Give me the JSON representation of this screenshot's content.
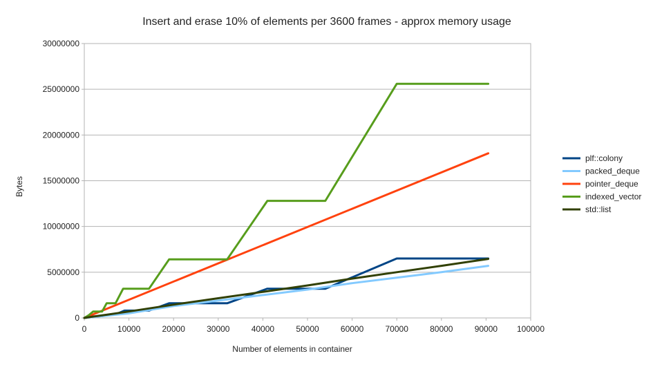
{
  "chart_data": {
    "type": "line",
    "title": "Insert and erase 10% of elements per 3600 frames - approx memory usage",
    "xlabel": "Number of elements in container",
    "ylabel": "Bytes",
    "xlim": [
      0,
      100000
    ],
    "ylim": [
      0,
      30000000
    ],
    "x_ticks": [
      "0",
      "10000",
      "20000",
      "30000",
      "40000",
      "50000",
      "60000",
      "70000",
      "80000",
      "90000",
      "100000"
    ],
    "y_ticks": [
      "0",
      "5000000",
      "10000000",
      "15000000",
      "20000000",
      "25000000",
      "30000000"
    ],
    "grid": true,
    "legend_position": "right",
    "series": [
      {
        "name": "plf::colony",
        "color": "#004586",
        "points": [
          [
            0,
            0
          ],
          [
            1000,
            50000
          ],
          [
            2000,
            100000
          ],
          [
            3000,
            200000
          ],
          [
            4000,
            200000
          ],
          [
            5000,
            300000
          ],
          [
            6000,
            400000
          ],
          [
            7000,
            400000
          ],
          [
            8000,
            600000
          ],
          [
            9000,
            800000
          ],
          [
            12000,
            800000
          ],
          [
            14500,
            800000
          ],
          [
            19000,
            1600000
          ],
          [
            26000,
            1600000
          ],
          [
            32000,
            1600000
          ],
          [
            41000,
            3200000
          ],
          [
            47000,
            3200000
          ],
          [
            54000,
            3200000
          ],
          [
            70000,
            6500000
          ],
          [
            90500,
            6500000
          ]
        ]
      },
      {
        "name": "packed_deque",
        "color": "#83caff",
        "points": [
          [
            0,
            0
          ],
          [
            2000,
            100000
          ],
          [
            5000,
            250000
          ],
          [
            10000,
            500000
          ],
          [
            20000,
            1300000
          ],
          [
            30000,
            1900000
          ],
          [
            40000,
            2500000
          ],
          [
            50000,
            3100000
          ],
          [
            60000,
            3800000
          ],
          [
            70000,
            4400000
          ],
          [
            80000,
            5000000
          ],
          [
            90500,
            5700000
          ]
        ]
      },
      {
        "name": "pointer_deque",
        "color": "#ff420e",
        "points": [
          [
            0,
            0
          ],
          [
            90500,
            18000000
          ]
        ]
      },
      {
        "name": "indexed_vector",
        "color": "#579d1c",
        "points": [
          [
            0,
            0
          ],
          [
            1000,
            300000
          ],
          [
            2000,
            700000
          ],
          [
            3000,
            700000
          ],
          [
            4000,
            700000
          ],
          [
            5000,
            1600000
          ],
          [
            6000,
            1600000
          ],
          [
            7000,
            1600000
          ],
          [
            8700,
            3200000
          ],
          [
            14500,
            3200000
          ],
          [
            19000,
            6400000
          ],
          [
            32000,
            6400000
          ],
          [
            41000,
            12800000
          ],
          [
            54000,
            12800000
          ],
          [
            70000,
            25600000
          ],
          [
            90500,
            25600000
          ]
        ]
      },
      {
        "name": "std::list",
        "color": "#314004",
        "points": [
          [
            0,
            0
          ],
          [
            2000,
            150000
          ],
          [
            5000,
            350000
          ],
          [
            10000,
            700000
          ],
          [
            20000,
            1450000
          ],
          [
            30000,
            2150000
          ],
          [
            40000,
            2850000
          ],
          [
            50000,
            3550000
          ],
          [
            60000,
            4300000
          ],
          [
            70000,
            5000000
          ],
          [
            80000,
            5700000
          ],
          [
            90500,
            6450000
          ]
        ]
      }
    ]
  }
}
